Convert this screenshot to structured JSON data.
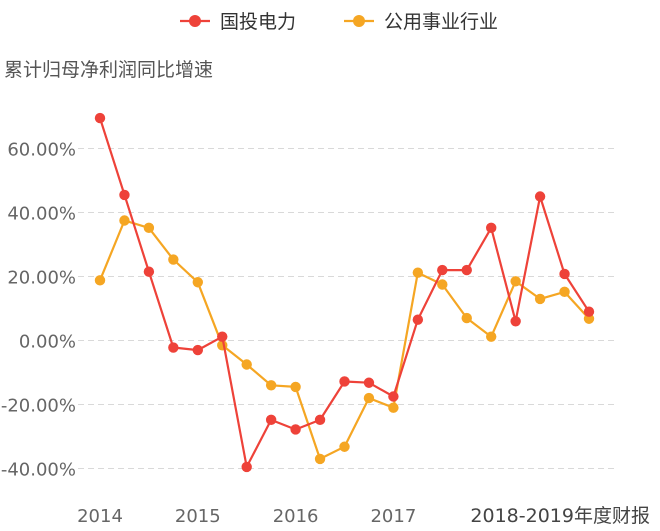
{
  "chart_data": {
    "type": "line",
    "ylabel": "累计归母净利润同比增速",
    "footnote": "2018-2019年度财报",
    "x_ticks": [
      "2014",
      "2015",
      "2016",
      "2017"
    ],
    "y_ticks": [
      "60.00%",
      "40.00%",
      "20.00%",
      "0.00%",
      "-20.00%",
      "-40.00%"
    ],
    "ylim": [
      -50,
      80
    ],
    "grid": true,
    "legend_position": "top-center",
    "series": [
      {
        "name": "国投电力",
        "color": "#ee4239",
        "values": [
          69.5,
          45.5,
          21.5,
          -2.2,
          -3.0,
          1.2,
          -39.5,
          -24.8,
          -27.8,
          -24.8,
          -12.8,
          -13.2,
          -17.5,
          6.5,
          22.0,
          22.0,
          35.2,
          6.0,
          45.0,
          20.8,
          9.0
        ]
      },
      {
        "name": "公用事业行业",
        "color": "#f5a623",
        "values": [
          18.8,
          37.5,
          35.2,
          25.3,
          18.2,
          -1.5,
          -7.5,
          -14.0,
          -14.5,
          -37.0,
          -33.2,
          -18.0,
          -21.0,
          21.2,
          17.5,
          7.0,
          1.2,
          18.5,
          13.0,
          15.2,
          6.8
        ]
      }
    ]
  }
}
